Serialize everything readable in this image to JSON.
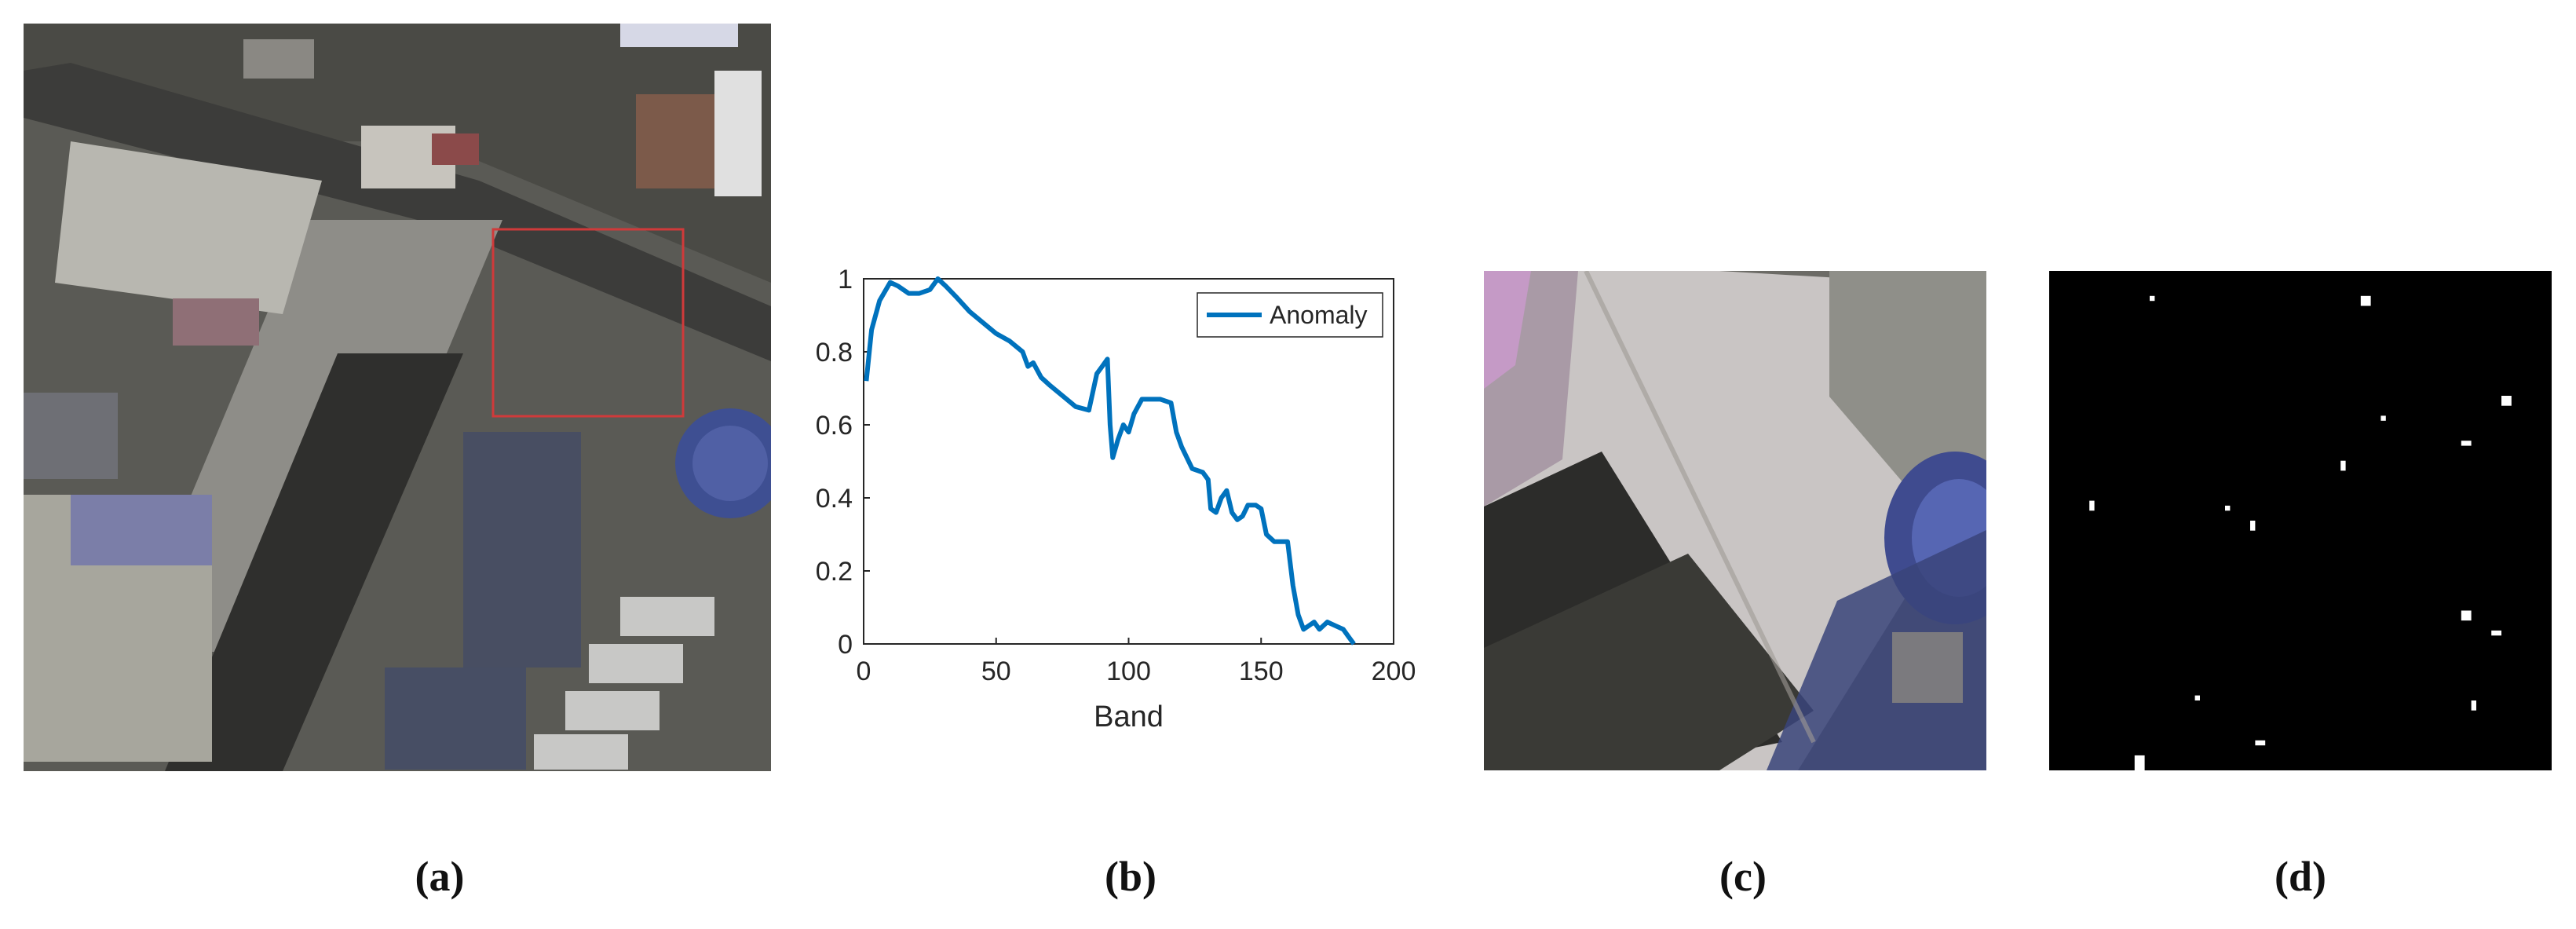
{
  "figure": {
    "captions": [
      "(a)",
      "(b)",
      "(c)",
      "(d)"
    ],
    "panels": [
      {
        "id": "a",
        "content": "aerial-hyperspectral-pseudocolor-image"
      },
      {
        "id": "b",
        "content": "anomaly-spectral-curve"
      },
      {
        "id": "c",
        "content": "zoomed-detection-region"
      },
      {
        "id": "d",
        "content": "anomaly-ground-truth-map"
      }
    ],
    "colors": {
      "line": "#0072BD",
      "highlight_box": "#d03a3a",
      "truth_bg": "#000000",
      "truth_fg": "#ffffff"
    }
  },
  "chart_data": {
    "type": "line",
    "title": "",
    "xlabel": "Band",
    "ylabel": "",
    "xlim": [
      0,
      200
    ],
    "ylim": [
      0,
      1
    ],
    "xticks": [
      0,
      50,
      100,
      150,
      200
    ],
    "yticks": [
      0,
      0.2,
      0.4,
      0.6,
      0.8,
      1
    ],
    "xtick_labels": [
      "0",
      "50",
      "100",
      "150",
      "200"
    ],
    "ytick_labels": [
      "0",
      "0.2",
      "0.4",
      "0.6",
      "0.8",
      "1"
    ],
    "legend": {
      "location": "top-right",
      "entries": [
        "Anomaly"
      ]
    },
    "series": [
      {
        "name": "Anomaly",
        "x": [
          1,
          3,
          6,
          10,
          13,
          17,
          21,
          25,
          28,
          31,
          35,
          40,
          45,
          50,
          55,
          60,
          62,
          64,
          67,
          70,
          75,
          80,
          85,
          88,
          90,
          92,
          93,
          94,
          96,
          98,
          100,
          102,
          105,
          108,
          112,
          116,
          118,
          120,
          124,
          128,
          130,
          131,
          133,
          135,
          137,
          139,
          141,
          143,
          145,
          148,
          150,
          152,
          155,
          160,
          162,
          164,
          166,
          168,
          170,
          172,
          175,
          178,
          181,
          183,
          185
        ],
        "y": [
          0.72,
          0.86,
          0.94,
          0.99,
          0.98,
          0.96,
          0.96,
          0.97,
          1.0,
          0.98,
          0.95,
          0.91,
          0.88,
          0.85,
          0.83,
          0.8,
          0.76,
          0.77,
          0.73,
          0.71,
          0.68,
          0.65,
          0.64,
          0.74,
          0.76,
          0.78,
          0.6,
          0.51,
          0.56,
          0.6,
          0.58,
          0.63,
          0.67,
          0.67,
          0.67,
          0.66,
          0.58,
          0.54,
          0.48,
          0.47,
          0.45,
          0.37,
          0.36,
          0.4,
          0.42,
          0.36,
          0.34,
          0.35,
          0.38,
          0.38,
          0.37,
          0.3,
          0.28,
          0.28,
          0.16,
          0.08,
          0.04,
          0.05,
          0.06,
          0.04,
          0.06,
          0.05,
          0.04,
          0.02,
          0.0
        ]
      }
    ]
  },
  "ground_truth": {
    "grid_size": [
      100,
      100
    ],
    "anomalies": [
      {
        "col": 20,
        "row": 5,
        "w": 1,
        "h": 1
      },
      {
        "col": 62,
        "row": 5,
        "w": 2,
        "h": 2
      },
      {
        "col": 90,
        "row": 25,
        "w": 2,
        "h": 2
      },
      {
        "col": 66,
        "row": 29,
        "w": 1,
        "h": 1
      },
      {
        "col": 82,
        "row": 34,
        "w": 2,
        "h": 1
      },
      {
        "col": 58,
        "row": 38,
        "w": 1,
        "h": 2
      },
      {
        "col": 8,
        "row": 46,
        "w": 1,
        "h": 2
      },
      {
        "col": 35,
        "row": 47,
        "w": 1,
        "h": 1
      },
      {
        "col": 40,
        "row": 50,
        "w": 1,
        "h": 2
      },
      {
        "col": 82,
        "row": 68,
        "w": 2,
        "h": 2
      },
      {
        "col": 88,
        "row": 72,
        "w": 2,
        "h": 1
      },
      {
        "col": 29,
        "row": 85,
        "w": 1,
        "h": 1
      },
      {
        "col": 84,
        "row": 86,
        "w": 1,
        "h": 2
      },
      {
        "col": 41,
        "row": 94,
        "w": 2,
        "h": 1
      },
      {
        "col": 17,
        "row": 97,
        "w": 2,
        "h": 3
      }
    ]
  }
}
